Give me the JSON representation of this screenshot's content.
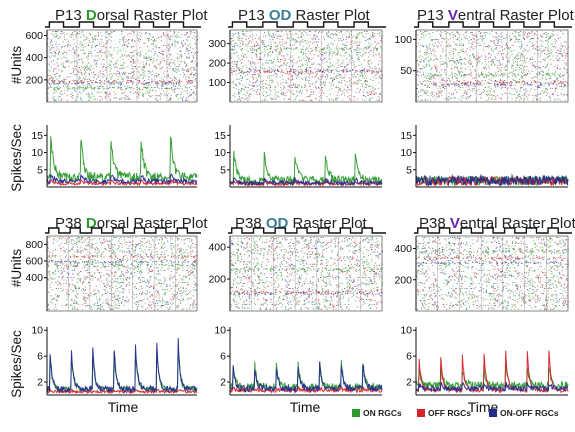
{
  "colors": {
    "on": "#2e9a2e",
    "off": "#d8232a",
    "onoff": "#232b8e",
    "accent_dorsal": "#2e9a2e",
    "accent_od": "#3a7f95",
    "accent_ventral": "#6a22b2",
    "axis": "#111111"
  },
  "labels": {
    "ylabel_units": "#Units",
    "ylabel_rate": "Spikes/Sec",
    "xlabel_time": "Time"
  },
  "legend": {
    "items": [
      {
        "label": "ON RGCs",
        "color": "#2e9a2e"
      },
      {
        "label": "OFF RGCs",
        "color": "#d8232a"
      },
      {
        "label": "ON-OFF RGCs",
        "color": "#232b8e"
      }
    ]
  },
  "panels": [
    {
      "prefix": "P13 ",
      "accent": "D",
      "suffix": "orsal Raster Plot",
      "accent_key": "accent_dorsal"
    },
    {
      "prefix": "P13 ",
      "accent": "OD",
      "suffix": " Raster Plot",
      "accent_key": "accent_od"
    },
    {
      "prefix": "P13 ",
      "accent": "V",
      "suffix": "entral Raster Plot",
      "accent_key": "accent_ventral"
    },
    {
      "prefix": "P38 ",
      "accent": "D",
      "suffix": "orsal Raster Plot",
      "accent_key": "accent_dorsal"
    },
    {
      "prefix": "P38 ",
      "accent": "OD",
      "suffix": " Raster Plot",
      "accent_key": "accent_od"
    },
    {
      "prefix": "P38 ",
      "accent": "V",
      "suffix": "entral Raster Plot",
      "accent_key": "accent_ventral"
    }
  ],
  "chart_data": [
    {
      "type": "scatter",
      "title": "P13 Dorsal Raster Plot",
      "ylabel": "#Units",
      "ylim": [
        0,
        650
      ],
      "yticks": [
        200,
        400,
        600
      ],
      "stimulus_cycles": 5,
      "seed": 11
    },
    {
      "type": "scatter",
      "title": "P13 OD Raster Plot",
      "ylabel": "",
      "ylim": [
        0,
        370
      ],
      "yticks": [
        100,
        200,
        300
      ],
      "stimulus_cycles": 5,
      "seed": 23
    },
    {
      "type": "scatter",
      "title": "P13 Ventral Raster Plot",
      "ylabel": "",
      "ylim": [
        0,
        115
      ],
      "yticks": [
        50,
        100
      ],
      "stimulus_cycles": 5,
      "seed": 37
    },
    {
      "type": "line",
      "ylabel": "Spikes/Sec",
      "ylim": [
        0,
        18
      ],
      "yticks": [
        5,
        10,
        15
      ],
      "cycles": 5,
      "series": [
        {
          "name": "ON RGCs",
          "color_key": "on",
          "peak": 13,
          "base": 2.8,
          "noise": 1.4
        },
        {
          "name": "OFF RGCs",
          "color_key": "off",
          "peak": 1.0,
          "base": 1.0,
          "noise": 0.4
        },
        {
          "name": "ON-OFF RGCs",
          "color_key": "onoff",
          "peak": 2.2,
          "base": 1.7,
          "noise": 0.6
        }
      ]
    },
    {
      "type": "line",
      "ylabel": "",
      "ylim": [
        0,
        18
      ],
      "yticks": [
        5,
        10,
        15
      ],
      "cycles": 5,
      "series": [
        {
          "name": "ON RGCs",
          "color_key": "on",
          "peak": 8.5,
          "base": 2.0,
          "noise": 1.2
        },
        {
          "name": "OFF RGCs",
          "color_key": "off",
          "peak": 0.8,
          "base": 0.9,
          "noise": 0.5
        },
        {
          "name": "ON-OFF RGCs",
          "color_key": "onoff",
          "peak": 1.2,
          "base": 1.2,
          "noise": 0.6
        }
      ]
    },
    {
      "type": "line",
      "ylabel": "",
      "ylim": [
        0,
        18
      ],
      "yticks": [
        5,
        10,
        15
      ],
      "cycles": 5,
      "series": [
        {
          "name": "ON RGCs",
          "color_key": "on",
          "peak": 0.5,
          "base": 1.8,
          "noise": 1.4
        },
        {
          "name": "OFF RGCs",
          "color_key": "off",
          "peak": 0.6,
          "base": 1.6,
          "noise": 1.3
        },
        {
          "name": "ON-OFF RGCs",
          "color_key": "onoff",
          "peak": 0.5,
          "base": 1.9,
          "noise": 1.4
        }
      ]
    },
    {
      "type": "scatter",
      "title": "P38 Dorsal Raster Plot",
      "ylabel": "#Units",
      "ylim": [
        0,
        900
      ],
      "yticks": [
        400,
        600,
        800
      ],
      "stimulus_cycles": 7,
      "seed": 51
    },
    {
      "type": "scatter",
      "title": "P38 OD Raster Plot",
      "ylabel": "",
      "ylim": [
        0,
        470
      ],
      "yticks": [
        200,
        400
      ],
      "stimulus_cycles": 7,
      "seed": 63
    },
    {
      "type": "scatter",
      "title": "P38 Ventral Raster Plot",
      "ylabel": "",
      "ylim": [
        0,
        480
      ],
      "yticks": [
        200,
        400
      ],
      "stimulus_cycles": 7,
      "seed": 77
    },
    {
      "type": "line",
      "ylabel": "Spikes/Sec",
      "xlabel": "Time",
      "ylim": [
        0,
        10.5
      ],
      "yticks": [
        2,
        6,
        10
      ],
      "cycles": 7,
      "series": [
        {
          "name": "ON RGCs",
          "color_key": "on",
          "peak": 6.5,
          "base": 0.9,
          "noise": 0.4
        },
        {
          "name": "OFF RGCs",
          "color_key": "off",
          "peak": 0.3,
          "base": 0.5,
          "noise": 0.2
        },
        {
          "name": "ON-OFF RGCs",
          "color_key": "onoff",
          "peak": 7.5,
          "base": 0.9,
          "noise": 0.5
        }
      ]
    },
    {
      "type": "line",
      "ylabel": "",
      "xlabel": "Time",
      "ylim": [
        0,
        10.5
      ],
      "yticks": [
        2,
        6,
        10
      ],
      "cycles": 7,
      "series": [
        {
          "name": "ON RGCs",
          "color_key": "on",
          "peak": 4.2,
          "base": 1.2,
          "noise": 0.6
        },
        {
          "name": "OFF RGCs",
          "color_key": "off",
          "peak": 0.4,
          "base": 0.7,
          "noise": 0.3
        },
        {
          "name": "ON-OFF RGCs",
          "color_key": "onoff",
          "peak": 4.2,
          "base": 1.0,
          "noise": 0.5
        }
      ]
    },
    {
      "type": "line",
      "ylabel": "",
      "xlabel": "Time",
      "ylim": [
        0,
        10.5
      ],
      "yticks": [
        2,
        6,
        10
      ],
      "cycles": 7,
      "series": [
        {
          "name": "ON RGCs",
          "color_key": "on",
          "peak": 3.3,
          "base": 1.5,
          "noise": 0.6
        },
        {
          "name": "OFF RGCs",
          "color_key": "off",
          "peak": 6.5,
          "base": 0.7,
          "noise": 0.3
        },
        {
          "name": "ON-OFF RGCs",
          "color_key": "onoff",
          "peak": 0.9,
          "base": 1.0,
          "noise": 0.4
        }
      ]
    }
  ]
}
